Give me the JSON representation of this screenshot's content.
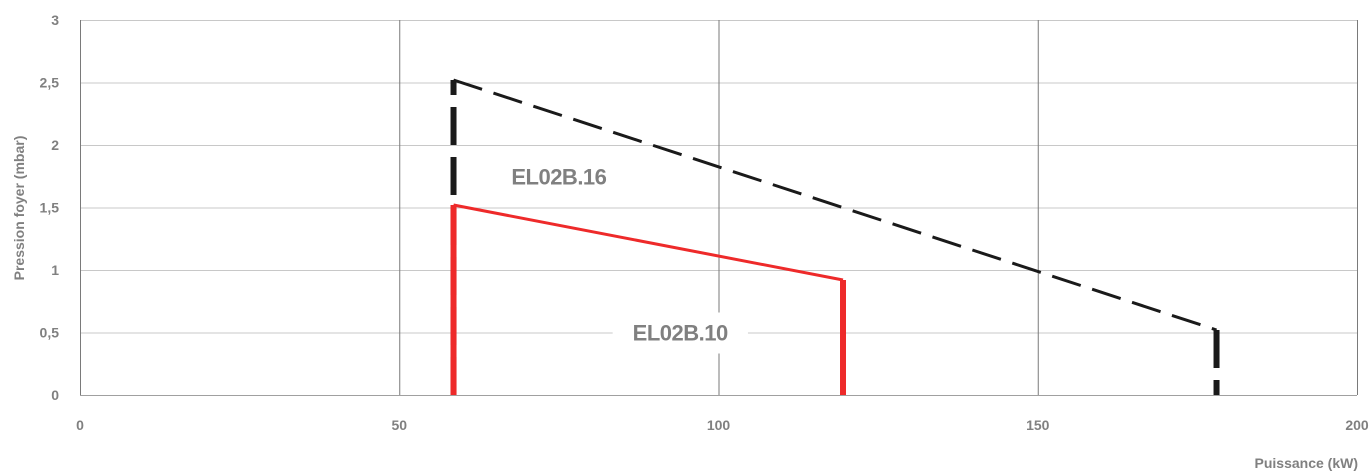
{
  "chart_data": {
    "type": "line",
    "xlabel": "Puissance (kW)",
    "ylabel": "Pression foyer (mbar)",
    "xlim": [
      0,
      200
    ],
    "ylim": [
      0,
      3
    ],
    "x_ticks": [
      {
        "value": 0,
        "label": "0"
      },
      {
        "value": 50,
        "label": "50"
      },
      {
        "value": 100,
        "label": "100"
      },
      {
        "value": 150,
        "label": "150"
      },
      {
        "value": 200,
        "label": "200"
      }
    ],
    "y_ticks": [
      {
        "value": 0,
        "label": "0"
      },
      {
        "value": 0.5,
        "label": "0,5"
      },
      {
        "value": 1,
        "label": "1"
      },
      {
        "value": 1.5,
        "label": "1,5"
      },
      {
        "value": 2,
        "label": "2"
      },
      {
        "value": 2.5,
        "label": "2,5"
      },
      {
        "value": 3,
        "label": "3"
      }
    ],
    "grid": true,
    "series": [
      {
        "name": "EL02B.16",
        "color": "#1a1a1a",
        "style": "dashed",
        "points": [
          [
            58.5,
            0
          ],
          [
            58.5,
            2.52
          ],
          [
            178,
            0.52
          ],
          [
            178,
            0
          ]
        ],
        "label_anchor": [
          75,
          1.75
        ]
      },
      {
        "name": "EL02B.10",
        "color": "#ee2a2a",
        "style": "solid",
        "points": [
          [
            58.5,
            0
          ],
          [
            58.5,
            1.52
          ],
          [
            119.5,
            0.92
          ],
          [
            119.5,
            0
          ]
        ],
        "label_anchor": [
          94,
          0.5
        ]
      }
    ]
  }
}
